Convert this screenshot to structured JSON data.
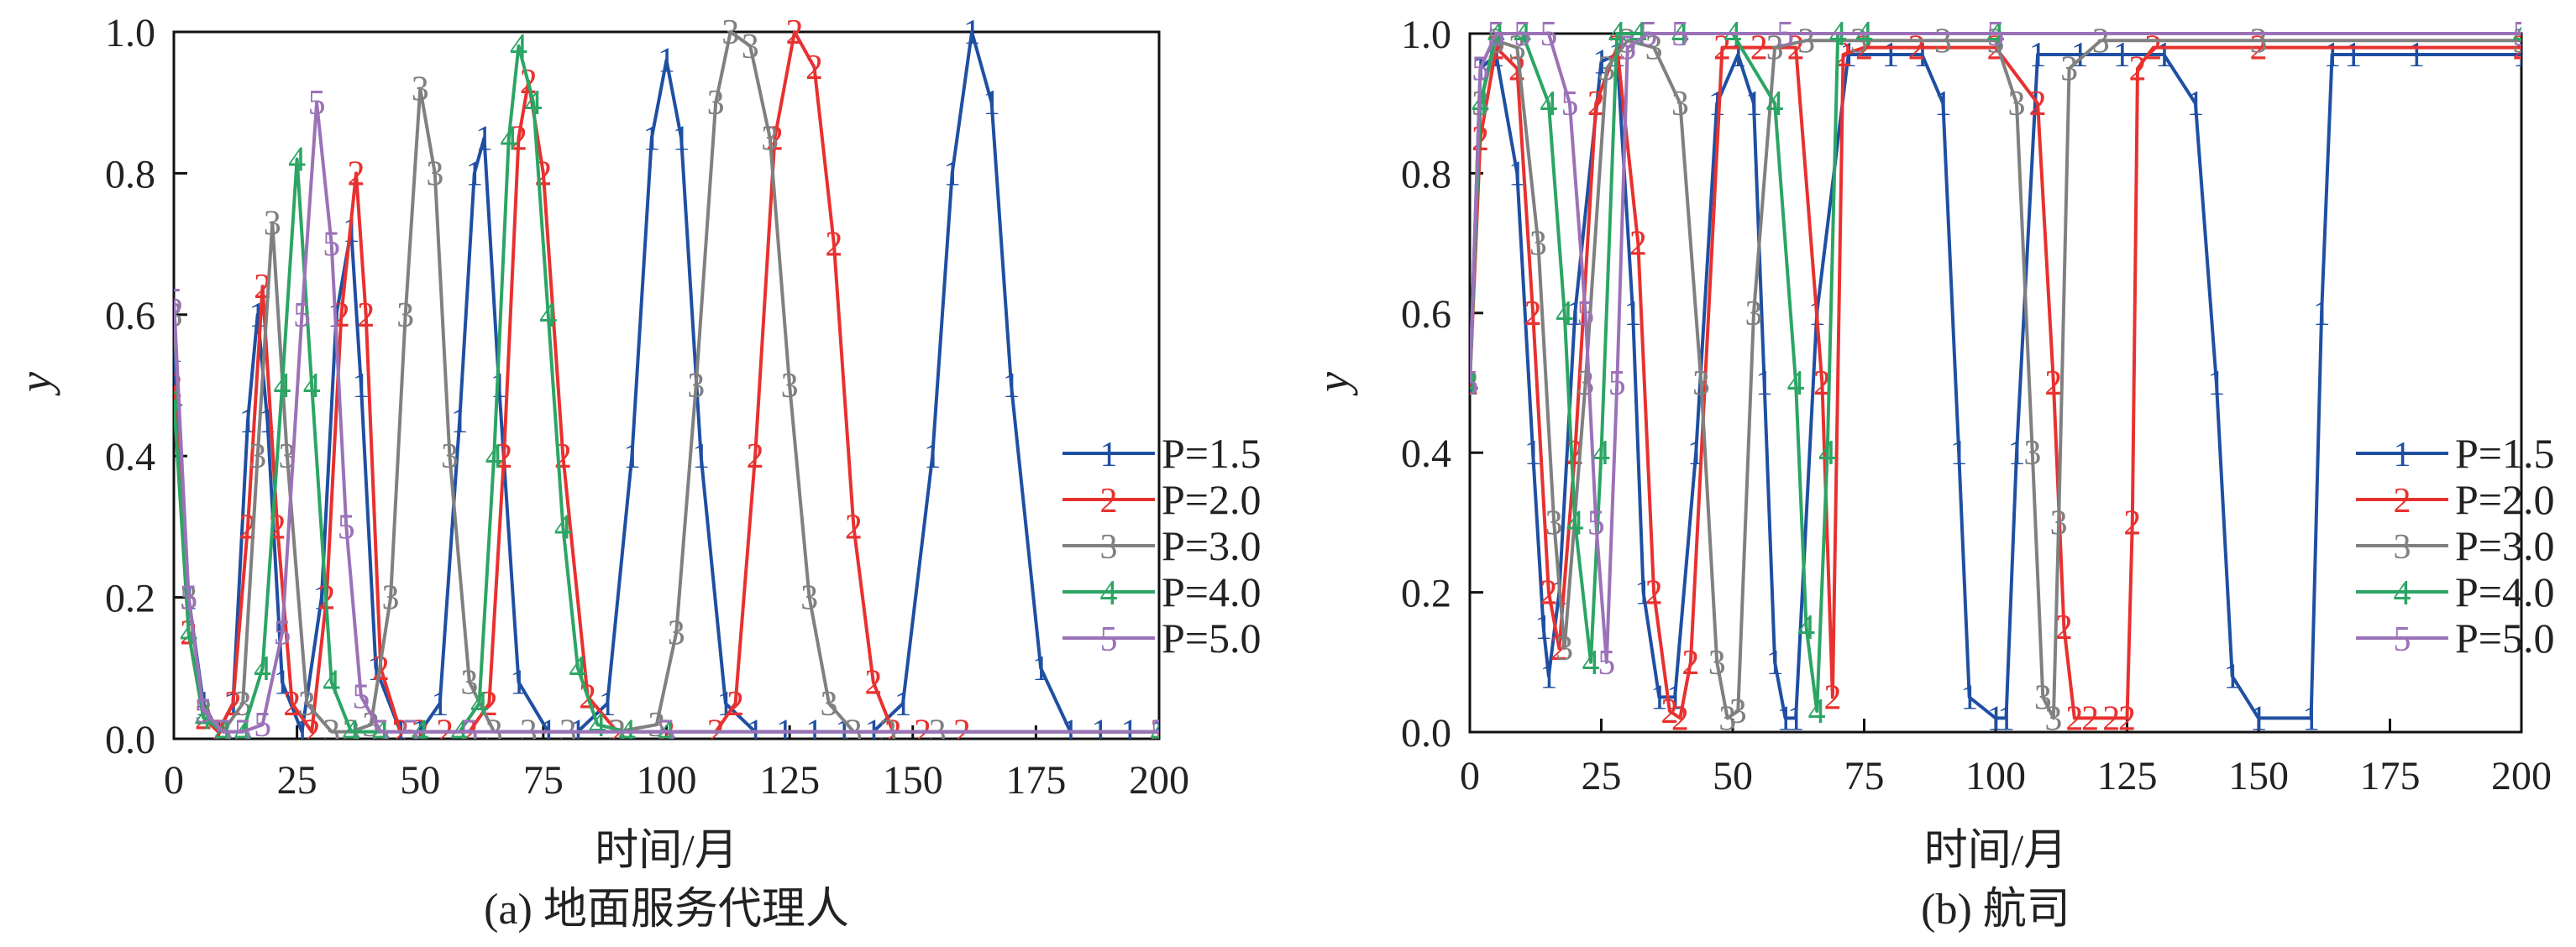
{
  "chart_data": [
    {
      "type": "line",
      "caption": "(a) 地面服务代理人",
      "xlabel": "时间/月",
      "ylabel": "y",
      "xlim": [
        0,
        200
      ],
      "ylim": [
        0,
        1.0
      ],
      "xticks": [
        "0",
        "25",
        "50",
        "75",
        "100",
        "125",
        "150",
        "175",
        "200"
      ],
      "yticks": [
        "0.0",
        "0.2",
        "0.4",
        "0.6",
        "0.8",
        "1.0"
      ],
      "legend_position": "right-center",
      "series": [
        {
          "name": "P=1.5",
          "marker": "1",
          "color": "#1f4fa3",
          "x": [
            0,
            3,
            6,
            9,
            12,
            15,
            17,
            19,
            22,
            26,
            30,
            33,
            36,
            38,
            41,
            46,
            50,
            54,
            58,
            61,
            63,
            66,
            70,
            76,
            82,
            88,
            93,
            97,
            100,
            103,
            107,
            112,
            118,
            124,
            130,
            136,
            142,
            148,
            154,
            158,
            162,
            166,
            170,
            176,
            182,
            188,
            194,
            200
          ],
          "y": [
            0.55,
            0.2,
            0.05,
            0.01,
            0.05,
            0.45,
            0.6,
            0.45,
            0.08,
            0.01,
            0.2,
            0.6,
            0.72,
            0.5,
            0.1,
            0.01,
            0.01,
            0.05,
            0.45,
            0.8,
            0.85,
            0.5,
            0.08,
            0.01,
            0.01,
            0.05,
            0.4,
            0.85,
            0.96,
            0.85,
            0.4,
            0.05,
            0.01,
            0.01,
            0.01,
            0.01,
            0.01,
            0.05,
            0.4,
            0.8,
            1.0,
            0.9,
            0.5,
            0.1,
            0.01,
            0.01,
            0.01,
            0.01
          ]
        },
        {
          "name": "P=2.0",
          "marker": "2",
          "color": "#e8312f",
          "x": [
            0,
            3,
            6,
            9,
            12,
            15,
            18,
            21,
            24,
            28,
            31,
            34,
            37,
            39,
            42,
            46,
            50,
            55,
            60,
            64,
            67,
            70,
            72,
            75,
            79,
            84,
            90,
            100,
            110,
            114,
            118,
            122,
            126,
            130,
            134,
            138,
            142,
            146,
            152,
            160,
            200
          ],
          "y": [
            0.5,
            0.15,
            0.03,
            0.01,
            0.05,
            0.3,
            0.64,
            0.3,
            0.05,
            0.01,
            0.2,
            0.6,
            0.8,
            0.6,
            0.1,
            0.01,
            0.01,
            0.01,
            0.01,
            0.05,
            0.4,
            0.85,
            0.93,
            0.8,
            0.4,
            0.06,
            0.01,
            0.01,
            0.01,
            0.05,
            0.4,
            0.85,
            1.0,
            0.95,
            0.7,
            0.3,
            0.08,
            0.01,
            0.01,
            0.01,
            0.01
          ]
        },
        {
          "name": "P=3.0",
          "marker": "3",
          "color": "#808080",
          "x": [
            0,
            3,
            6,
            10,
            14,
            17,
            20,
            23,
            27,
            32,
            36,
            40,
            44,
            47,
            50,
            53,
            56,
            60,
            65,
            72,
            80,
            90,
            98,
            102,
            106,
            110,
            113,
            117,
            121,
            125,
            129,
            133,
            138,
            145,
            155,
            200
          ],
          "y": [
            0.6,
            0.2,
            0.04,
            0.01,
            0.05,
            0.4,
            0.73,
            0.4,
            0.05,
            0.01,
            0.01,
            0.02,
            0.2,
            0.6,
            0.92,
            0.8,
            0.4,
            0.08,
            0.01,
            0.01,
            0.01,
            0.01,
            0.02,
            0.15,
            0.5,
            0.9,
            1.0,
            0.98,
            0.85,
            0.5,
            0.2,
            0.05,
            0.01,
            0.01,
            0.01,
            0.01
          ]
        },
        {
          "name": "P=4.0",
          "marker": "4",
          "color": "#2ca564",
          "x": [
            0,
            3,
            6,
            10,
            14,
            18,
            22,
            25,
            28,
            32,
            36,
            42,
            50,
            58,
            62,
            65,
            68,
            70,
            73,
            76,
            79,
            82,
            86,
            92,
            100,
            200
          ],
          "y": [
            0.48,
            0.15,
            0.03,
            0.01,
            0.01,
            0.1,
            0.5,
            0.82,
            0.5,
            0.08,
            0.01,
            0.01,
            0.01,
            0.01,
            0.05,
            0.4,
            0.85,
            0.98,
            0.9,
            0.6,
            0.3,
            0.1,
            0.02,
            0.01,
            0.01,
            0.01
          ]
        },
        {
          "name": "P=5.0",
          "marker": "5",
          "color": "#9b72b8",
          "x": [
            0,
            3,
            6,
            10,
            14,
            18,
            22,
            26,
            29,
            32,
            35,
            38,
            42,
            48,
            60,
            100,
            200
          ],
          "y": [
            0.62,
            0.2,
            0.04,
            0.01,
            0.01,
            0.02,
            0.15,
            0.6,
            0.9,
            0.7,
            0.3,
            0.06,
            0.01,
            0.01,
            0.01,
            0.01,
            0.01
          ]
        }
      ]
    },
    {
      "type": "line",
      "caption": "(b) 航司",
      "xlabel": "时间/月",
      "ylabel": "y",
      "xlim": [
        0,
        200
      ],
      "ylim": [
        0,
        1.0
      ],
      "xticks": [
        "0",
        "25",
        "50",
        "75",
        "100",
        "125",
        "150",
        "175",
        "200"
      ],
      "yticks": [
        "0.0",
        "0.2",
        "0.4",
        "0.6",
        "0.8",
        "1.0"
      ],
      "legend_position": "right-center",
      "series": [
        {
          "name": "P=1.5",
          "marker": "1",
          "color": "#1f4fa3",
          "x": [
            0,
            2,
            5,
            9,
            12,
            14,
            15,
            17,
            20,
            25,
            28,
            31,
            33,
            36,
            39,
            43,
            47,
            51,
            54,
            56,
            58,
            60,
            62,
            66,
            72,
            80,
            86,
            90,
            93,
            95,
            100,
            102,
            104,
            108,
            116,
            124,
            132,
            138,
            142,
            145,
            150,
            160,
            162,
            164,
            168,
            180,
            200
          ],
          "y": [
            0.5,
            0.95,
            0.97,
            0.8,
            0.4,
            0.15,
            0.08,
            0.2,
            0.6,
            0.96,
            0.97,
            0.6,
            0.2,
            0.05,
            0.05,
            0.4,
            0.9,
            0.97,
            0.9,
            0.5,
            0.1,
            0.02,
            0.02,
            0.6,
            0.97,
            0.97,
            0.97,
            0.9,
            0.4,
            0.05,
            0.02,
            0.02,
            0.4,
            0.97,
            0.97,
            0.97,
            0.97,
            0.9,
            0.5,
            0.08,
            0.02,
            0.02,
            0.6,
            0.97,
            0.97,
            0.97,
            0.97
          ]
        },
        {
          "name": "P=2.0",
          "marker": "2",
          "color": "#e8312f",
          "x": [
            0,
            2,
            5,
            9,
            12,
            15,
            17,
            20,
            24,
            28,
            32,
            35,
            38,
            40,
            42,
            48,
            55,
            62,
            67,
            69,
            71,
            75,
            85,
            100,
            108,
            111,
            113,
            115,
            118,
            122,
            125,
            126,
            127,
            130,
            150,
            200
          ],
          "y": [
            0.5,
            0.85,
            0.98,
            0.95,
            0.6,
            0.2,
            0.12,
            0.4,
            0.9,
            0.98,
            0.7,
            0.2,
            0.03,
            0.02,
            0.1,
            0.98,
            0.98,
            0.98,
            0.5,
            0.05,
            0.97,
            0.98,
            0.98,
            0.98,
            0.9,
            0.5,
            0.15,
            0.02,
            0.02,
            0.02,
            0.02,
            0.3,
            0.95,
            0.98,
            0.98,
            0.98
          ]
        },
        {
          "name": "P=3.0",
          "marker": "3",
          "color": "#808080",
          "x": [
            0,
            2,
            5,
            9,
            13,
            16,
            18,
            22,
            26,
            30,
            35,
            40,
            44,
            47,
            49,
            51,
            54,
            58,
            64,
            74,
            90,
            100,
            104,
            107,
            109,
            111,
            112,
            114,
            120,
            150,
            200
          ],
          "y": [
            0.5,
            0.9,
            0.99,
            0.98,
            0.7,
            0.3,
            0.12,
            0.5,
            0.95,
            0.99,
            0.98,
            0.9,
            0.5,
            0.1,
            0.02,
            0.03,
            0.6,
            0.98,
            0.99,
            0.99,
            0.99,
            0.99,
            0.9,
            0.4,
            0.05,
            0.02,
            0.3,
            0.95,
            0.99,
            0.99,
            0.99
          ]
        },
        {
          "name": "P=4.0",
          "marker": "4",
          "color": "#2ca564",
          "x": [
            0,
            2,
            5,
            10,
            15,
            18,
            20,
            23,
            25,
            28,
            32,
            40,
            50,
            58,
            62,
            64,
            66,
            68,
            70,
            75,
            100,
            200
          ],
          "y": [
            0.5,
            0.9,
            1.0,
            1.0,
            0.9,
            0.6,
            0.3,
            0.1,
            0.4,
            1.0,
            1.0,
            1.0,
            1.0,
            0.9,
            0.5,
            0.15,
            0.03,
            0.4,
            1.0,
            1.0,
            1.0,
            1.0
          ]
        },
        {
          "name": "P=5.0",
          "marker": "5",
          "color": "#9b72b8",
          "x": [
            0,
            2,
            5,
            10,
            15,
            19,
            22,
            24,
            26,
            28,
            30,
            34,
            40,
            60,
            100,
            200
          ],
          "y": [
            0.5,
            0.95,
            1.0,
            1.0,
            1.0,
            0.9,
            0.6,
            0.3,
            0.1,
            0.5,
            0.98,
            1.0,
            1.0,
            1.0,
            1.0,
            1.0
          ]
        }
      ]
    }
  ]
}
